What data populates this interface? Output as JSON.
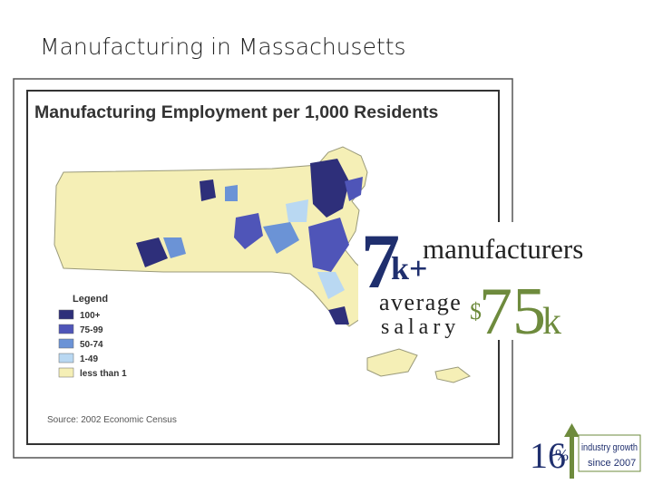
{
  "slide_title": "Manufacturing in Massachusetts",
  "map": {
    "title": "Manufacturing Employment per 1,000 Residents",
    "legend": {
      "title": "Legend",
      "items": [
        {
          "label": "100+",
          "color": "#2e2f7a"
        },
        {
          "label": "75-99",
          "color": "#4f55b8"
        },
        {
          "label": "50-74",
          "color": "#6b93d6"
        },
        {
          "label": "1-49",
          "color": "#b9d8f2"
        },
        {
          "label": "less than 1",
          "color": "#f5efb6"
        }
      ]
    },
    "source": "Source: 2002 Economic Census"
  },
  "stats": {
    "manufacturers_number": "7",
    "manufacturers_suffix": "k+",
    "manufacturers_label": "manufacturers",
    "salary_label_1": "average",
    "salary_label_2": "salary",
    "salary_currency": "$",
    "salary_number": "75",
    "salary_suffix": "k",
    "growth_number": "16",
    "growth_unit": "%",
    "growth_label_1": "industry growth",
    "growth_label_2": "since 2007"
  }
}
